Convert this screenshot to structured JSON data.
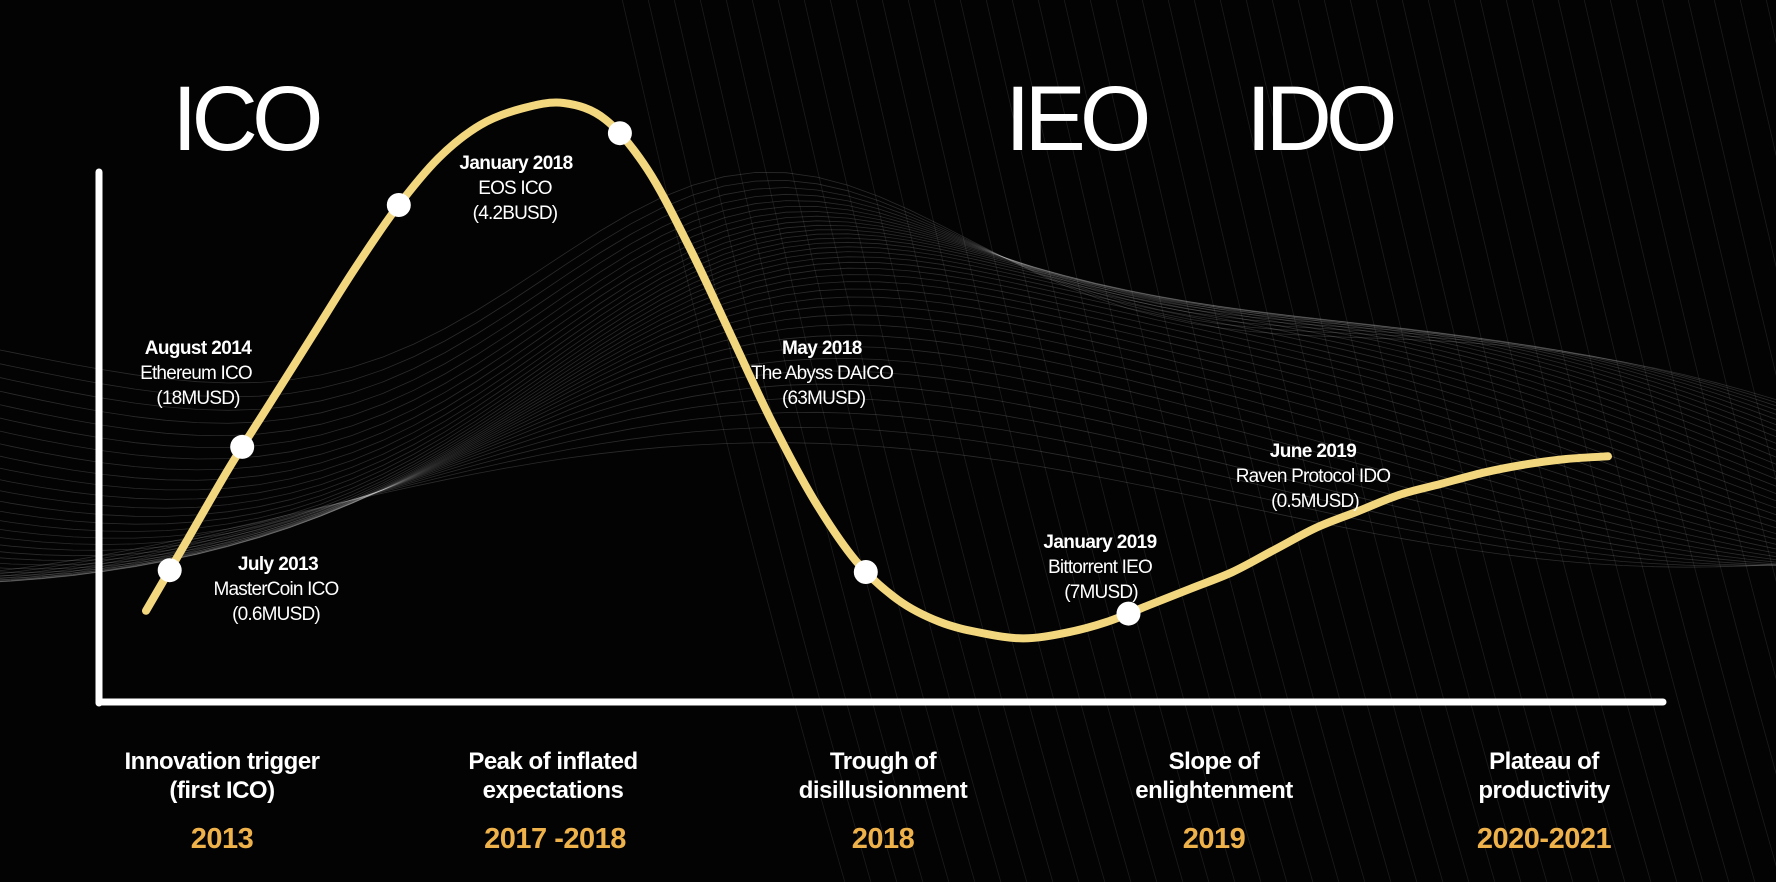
{
  "colors": {
    "background": "#030303",
    "curve": "#f2d77e",
    "axes": "#ffffff",
    "markers": "#ffffff",
    "year_text": "#efb24a",
    "mesh": "#ffffff"
  },
  "era_labels": [
    "ICO",
    "IEO",
    "IDO"
  ],
  "chart_data": {
    "type": "line",
    "title": "",
    "xlabel": "",
    "ylabel": "",
    "grid": false,
    "legend": "none",
    "phases": [
      {
        "name_line1": "Innovation trigger",
        "name_line2": "(first ICO)",
        "years": "2013"
      },
      {
        "name_line1": "Peak of inflated",
        "name_line2": "expectations",
        "years": "2017 -2018"
      },
      {
        "name_line1": "Trough of",
        "name_line2": "disillusionment",
        "years": "2018"
      },
      {
        "name_line1": "Slope of",
        "name_line2": "enlightenment",
        "years": "2019"
      },
      {
        "name_line1": "Plateau of",
        "name_line2": "productivity",
        "years": "2020-2021"
      }
    ],
    "events": [
      {
        "date": "July 2013",
        "name": "MasterCoin ICO",
        "raised": "(0.6MUSD)",
        "phase_index": 0,
        "curve_t": 0.023
      },
      {
        "date": "August 2014",
        "name": "Ethereum ICO",
        "raised": "(18MUSD)",
        "phase_index": 0,
        "curve_t": 0.093
      },
      {
        "date": "January 2018",
        "name": "EOS ICO",
        "raised": "(4.2BUSD)",
        "phase_index": 1,
        "curve_t": 0.234
      },
      {
        "date": "May 2018",
        "name": "The Abyss DAICO",
        "raised": "(63MUSD)",
        "phase_index": 2,
        "curve_t": 0.365
      },
      {
        "date": "January 2019",
        "name": "Bittorrent IEO",
        "raised": "(7MUSD)",
        "phase_index": 3,
        "curve_t": 0.612
      },
      {
        "date": "June 2019",
        "name": "Raven Protocol IDO",
        "raised": "(0.5MUSD)",
        "phase_index": 3,
        "curve_t": 0.751
      }
    ],
    "curve_levels": [
      0.08,
      0.21,
      0.34,
      0.46,
      0.58,
      0.7,
      0.81,
      0.9,
      0.96,
      0.99,
      1.0,
      0.97,
      0.88,
      0.74,
      0.58,
      0.42,
      0.28,
      0.17,
      0.1,
      0.06,
      0.04,
      0.03,
      0.04,
      0.06,
      0.09,
      0.12,
      0.15,
      0.19,
      0.23,
      0.26,
      0.29,
      0.31,
      0.33,
      0.345,
      0.355,
      0.36
    ]
  }
}
